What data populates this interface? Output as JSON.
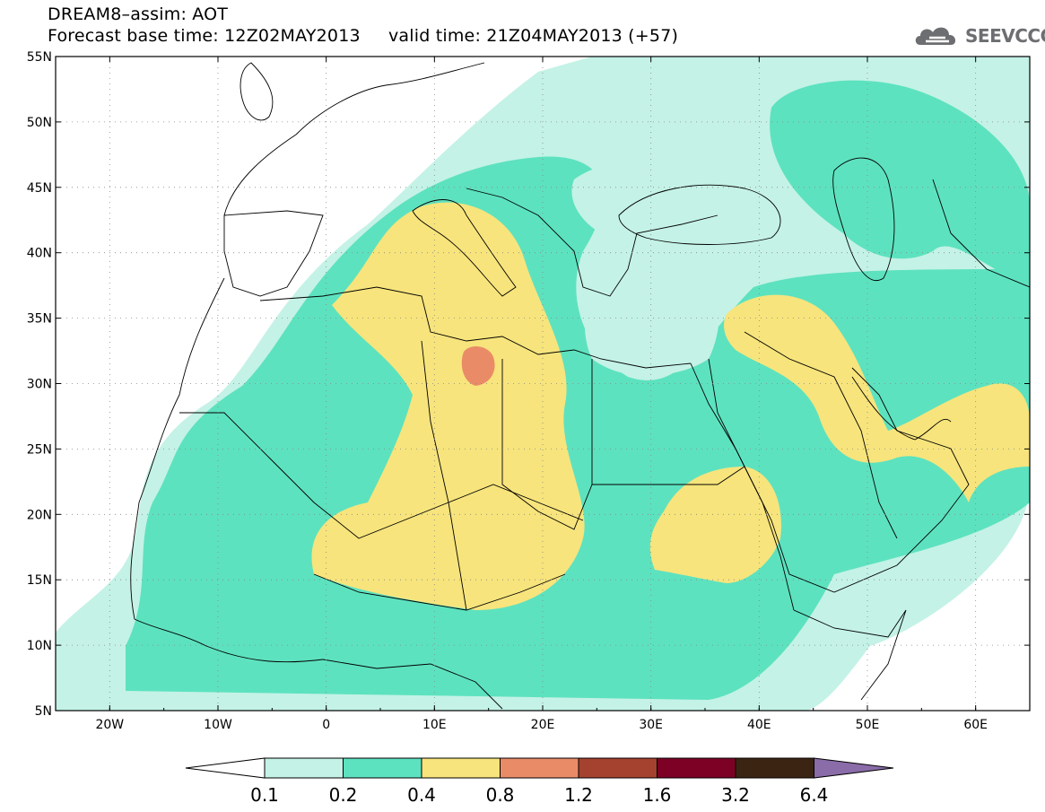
{
  "header": {
    "line1": "DREAM8–assim: AOT",
    "line2": "Forecast base time: 12Z02MAY2013     valid time: 21Z04MAY2013 (+57)"
  },
  "brand": {
    "text": "SEEVCCC",
    "icon": "cloud-icon",
    "color": "#6d6e71"
  },
  "map": {
    "lon_range": [
      -25,
      65
    ],
    "lat_range": [
      5,
      55
    ],
    "lat_ticks": [
      "5N",
      "10N",
      "15N",
      "20N",
      "25N",
      "30N",
      "35N",
      "40N",
      "45N",
      "50N",
      "55N"
    ],
    "lon_ticks": [
      "20W",
      "10W",
      "0",
      "10E",
      "20E",
      "30E",
      "40E",
      "50E",
      "60E"
    ],
    "grid": true
  },
  "colorbar": {
    "labels": [
      "0.1",
      "0.2",
      "0.4",
      "0.8",
      "1.2",
      "1.6",
      "3.2",
      "6.4"
    ],
    "colors": [
      "#ffffff",
      "#c4f2e6",
      "#5de2bf",
      "#f7e47c",
      "#ea8b68",
      "#a5422f",
      "#7d0025",
      "#3c2413",
      "#8a6ca8"
    ]
  }
}
